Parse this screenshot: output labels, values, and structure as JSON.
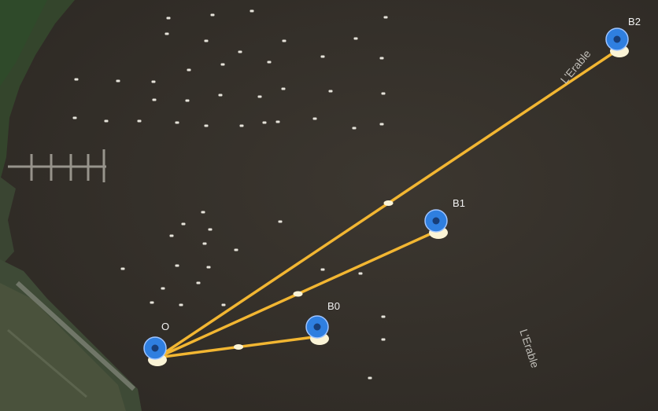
{
  "map": {
    "type": "satellite",
    "water_color": "#38332c",
    "shore_color": "#3b4a30",
    "route_color": "#f2b632",
    "marker_color": "#2f7fe0",
    "marker_base_color": "#fbf4d6",
    "label_color": "#f2f2f2"
  },
  "markers": [
    {
      "id": "O",
      "label": "O",
      "icon": "map-pin-icon"
    },
    {
      "id": "B0",
      "label": "B0",
      "icon": "map-pin-icon"
    },
    {
      "id": "B1",
      "label": "B1",
      "icon": "map-pin-icon"
    },
    {
      "id": "B2",
      "label": "B2",
      "icon": "map-pin-icon"
    }
  ],
  "routes": [
    {
      "from": "O",
      "to": "B0"
    },
    {
      "from": "O",
      "to": "B1"
    },
    {
      "from": "O",
      "to": "B2"
    }
  ],
  "water_labels": [
    "L'Erable",
    "L'Erable"
  ]
}
